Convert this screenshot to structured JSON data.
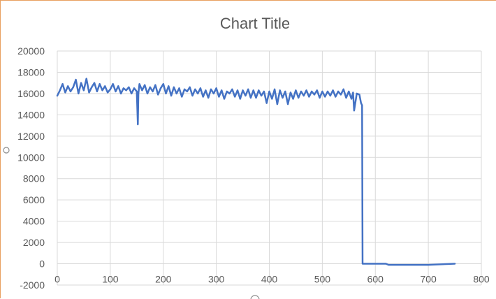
{
  "chart_data": {
    "type": "line",
    "title": "Chart Title",
    "xlabel": "",
    "ylabel": "",
    "xlim": [
      0,
      800
    ],
    "ylim": [
      -2000,
      20000
    ],
    "x_ticks": [
      0,
      100,
      200,
      300,
      400,
      500,
      600,
      700,
      800
    ],
    "y_ticks": [
      -2000,
      0,
      2000,
      4000,
      6000,
      8000,
      10000,
      12000,
      14000,
      16000,
      18000,
      20000
    ],
    "grid": true,
    "legend": "none",
    "series": [
      {
        "color": "#4472c4",
        "x": [
          0,
          5,
          10,
          15,
          20,
          25,
          30,
          35,
          40,
          45,
          50,
          55,
          60,
          65,
          70,
          75,
          80,
          85,
          90,
          95,
          100,
          105,
          110,
          115,
          120,
          125,
          130,
          135,
          140,
          145,
          150,
          152,
          153,
          155,
          160,
          165,
          170,
          175,
          180,
          185,
          190,
          195,
          200,
          205,
          210,
          215,
          220,
          225,
          230,
          235,
          240,
          245,
          250,
          255,
          260,
          265,
          270,
          275,
          280,
          285,
          290,
          295,
          300,
          305,
          310,
          315,
          320,
          325,
          330,
          335,
          340,
          345,
          350,
          355,
          360,
          365,
          370,
          375,
          380,
          385,
          390,
          395,
          400,
          405,
          410,
          415,
          420,
          425,
          430,
          435,
          440,
          445,
          450,
          455,
          460,
          465,
          470,
          475,
          480,
          485,
          490,
          495,
          500,
          505,
          510,
          515,
          520,
          525,
          530,
          535,
          540,
          545,
          550,
          555,
          558,
          560,
          565,
          570,
          573,
          575,
          576,
          580,
          600,
          620,
          625,
          650,
          700,
          750
        ],
        "y": [
          15800,
          16300,
          16900,
          16100,
          16700,
          16200,
          16600,
          17300,
          16000,
          17000,
          16300,
          17400,
          16100,
          16600,
          17000,
          16200,
          16900,
          16300,
          16700,
          16100,
          16400,
          16900,
          16200,
          16700,
          16000,
          16500,
          16300,
          16600,
          16000,
          16500,
          16200,
          13100,
          16000,
          16900,
          16300,
          16800,
          16000,
          16600,
          16200,
          16800,
          15900,
          16500,
          16900,
          16000,
          16700,
          15800,
          16600,
          16000,
          16500,
          15700,
          16400,
          16200,
          16600,
          15800,
          16400,
          16000,
          16500,
          15700,
          16300,
          15600,
          16400,
          16000,
          16500,
          15700,
          16300,
          15500,
          16200,
          16000,
          16400,
          15700,
          16300,
          15500,
          16300,
          15800,
          16400,
          15600,
          16300,
          15600,
          16300,
          15800,
          16200,
          15100,
          16200,
          15500,
          16400,
          15000,
          16300,
          15600,
          16200,
          15000,
          16100,
          15500,
          16300,
          15600,
          16200,
          15800,
          16300,
          15700,
          16200,
          15900,
          16300,
          15600,
          16200,
          15700,
          16200,
          15800,
          16300,
          15700,
          16200,
          15900,
          16400,
          15600,
          16200,
          15500,
          16100,
          14400,
          16000,
          15900,
          15100,
          14900,
          0,
          0,
          0,
          0,
          -100,
          -100,
          -100,
          0
        ]
      }
    ]
  }
}
